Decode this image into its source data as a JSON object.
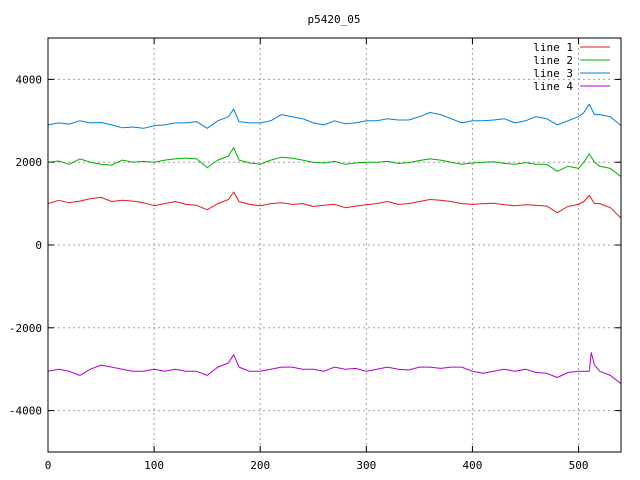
{
  "chart_data": {
    "type": "line",
    "title": "p5420_05",
    "xlabel": "",
    "ylabel": "",
    "xlim": [
      0,
      540
    ],
    "ylim": [
      -5000,
      5000
    ],
    "x_ticks": [
      0,
      100,
      200,
      300,
      400,
      500
    ],
    "y_ticks": [
      -4000,
      -2000,
      0,
      2000,
      4000
    ],
    "grid": true,
    "legend_position": "top-right",
    "series": [
      {
        "name": "line 1",
        "color": "#e41a1c",
        "x": [
          0,
          10,
          20,
          30,
          40,
          50,
          60,
          70,
          80,
          90,
          100,
          110,
          120,
          130,
          140,
          150,
          160,
          170,
          175,
          180,
          190,
          200,
          210,
          220,
          230,
          240,
          250,
          260,
          270,
          280,
          290,
          300,
          310,
          320,
          330,
          340,
          350,
          360,
          370,
          380,
          390,
          400,
          410,
          420,
          430,
          440,
          450,
          460,
          470,
          480,
          490,
          500,
          505,
          510,
          515,
          520,
          530,
          540
        ],
        "y": [
          1000,
          1080,
          1020,
          1060,
          1120,
          1150,
          1050,
          1080,
          1060,
          1020,
          950,
          1000,
          1050,
          980,
          960,
          850,
          1000,
          1100,
          1280,
          1050,
          980,
          950,
          1000,
          1020,
          980,
          1000,
          930,
          960,
          980,
          900,
          940,
          970,
          1000,
          1050,
          980,
          1000,
          1050,
          1100,
          1080,
          1050,
          1000,
          980,
          1000,
          1010,
          970,
          950,
          970,
          960,
          940,
          780,
          930,
          980,
          1050,
          1200,
          1000,
          1000,
          900,
          650
        ]
      },
      {
        "name": "line 2",
        "color": "#00b000",
        "x": [
          0,
          10,
          20,
          30,
          40,
          50,
          60,
          70,
          80,
          90,
          100,
          110,
          120,
          130,
          140,
          150,
          160,
          170,
          175,
          180,
          190,
          200,
          210,
          220,
          230,
          240,
          250,
          260,
          270,
          280,
          290,
          300,
          310,
          320,
          330,
          340,
          350,
          360,
          370,
          380,
          390,
          400,
          410,
          420,
          430,
          440,
          450,
          460,
          470,
          480,
          490,
          500,
          505,
          510,
          515,
          520,
          530,
          540
        ],
        "y": [
          2000,
          2030,
          1950,
          2080,
          2000,
          1950,
          1930,
          2050,
          2000,
          2020,
          2000,
          2050,
          2080,
          2100,
          2080,
          1870,
          2050,
          2150,
          2350,
          2050,
          1980,
          1950,
          2050,
          2120,
          2100,
          2050,
          2000,
          1980,
          2020,
          1950,
          1980,
          2000,
          2000,
          2020,
          1970,
          1990,
          2040,
          2080,
          2050,
          2000,
          1950,
          1980,
          2000,
          2010,
          1970,
          1950,
          1990,
          1950,
          1950,
          1780,
          1900,
          1850,
          2000,
          2200,
          2000,
          1900,
          1850,
          1650
        ]
      },
      {
        "name": "line 3",
        "color": "#0080e0",
        "x": [
          0,
          10,
          20,
          30,
          40,
          50,
          60,
          70,
          80,
          90,
          100,
          110,
          120,
          130,
          140,
          150,
          160,
          170,
          175,
          180,
          190,
          200,
          210,
          220,
          230,
          240,
          250,
          260,
          270,
          280,
          290,
          300,
          310,
          320,
          330,
          340,
          350,
          360,
          370,
          380,
          390,
          400,
          410,
          420,
          430,
          440,
          450,
          460,
          470,
          480,
          490,
          500,
          505,
          510,
          515,
          520,
          530,
          540
        ],
        "y": [
          2900,
          2950,
          2920,
          3000,
          2950,
          2960,
          2900,
          2830,
          2850,
          2820,
          2880,
          2900,
          2950,
          2950,
          2980,
          2820,
          3000,
          3100,
          3280,
          2980,
          2950,
          2950,
          3000,
          3150,
          3100,
          3050,
          2950,
          2900,
          3000,
          2930,
          2950,
          3000,
          3000,
          3050,
          3020,
          3020,
          3100,
          3200,
          3150,
          3050,
          2950,
          3000,
          3000,
          3020,
          3050,
          2950,
          3000,
          3100,
          3050,
          2900,
          3000,
          3100,
          3200,
          3400,
          3150,
          3150,
          3100,
          2880
        ]
      },
      {
        "name": "line 4",
        "color": "#b000d0",
        "x": [
          0,
          10,
          20,
          30,
          40,
          50,
          60,
          70,
          80,
          90,
          100,
          110,
          120,
          130,
          140,
          150,
          160,
          170,
          175,
          180,
          190,
          200,
          210,
          220,
          230,
          240,
          250,
          260,
          270,
          280,
          290,
          300,
          310,
          320,
          330,
          340,
          350,
          360,
          370,
          380,
          390,
          400,
          410,
          420,
          430,
          440,
          450,
          460,
          470,
          480,
          490,
          500,
          505,
          510,
          512,
          515,
          520,
          530,
          540
        ],
        "y": [
          -3050,
          -3000,
          -3050,
          -3150,
          -3000,
          -2900,
          -2950,
          -3000,
          -3050,
          -3050,
          -3000,
          -3050,
          -3000,
          -3050,
          -3050,
          -3150,
          -2950,
          -2850,
          -2650,
          -2950,
          -3050,
          -3050,
          -3000,
          -2950,
          -2950,
          -3000,
          -3000,
          -3050,
          -2950,
          -3000,
          -2980,
          -3050,
          -3000,
          -2950,
          -3000,
          -3020,
          -2950,
          -2950,
          -2980,
          -2950,
          -2950,
          -3050,
          -3100,
          -3050,
          -3000,
          -3050,
          -3000,
          -3080,
          -3100,
          -3200,
          -3080,
          -3050,
          -3050,
          -3050,
          -2600,
          -2900,
          -3050,
          -3150,
          -3350
        ]
      }
    ]
  }
}
